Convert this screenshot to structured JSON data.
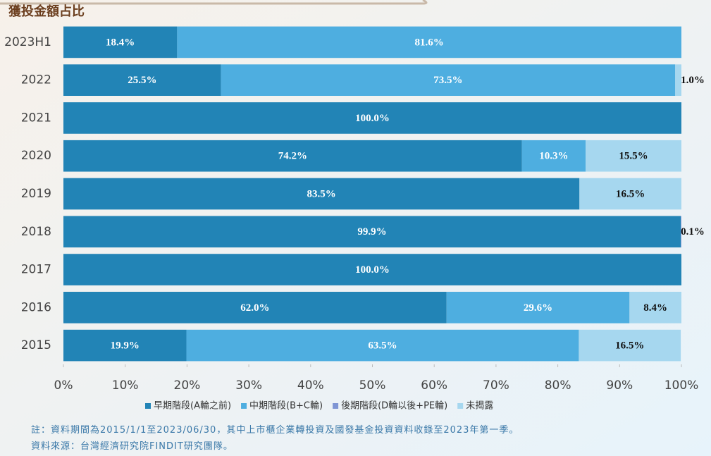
{
  "chart_data": {
    "type": "stacked_bar_h",
    "title": "獲投金額占比",
    "categories": [
      "2023H1",
      "2022",
      "2021",
      "2020",
      "2019",
      "2018",
      "2017",
      "2016",
      "2015"
    ],
    "series": [
      {
        "name": "早期階段(A輪之前)",
        "color": "#2284b6",
        "values": [
          18.4,
          25.5,
          100.0,
          74.2,
          83.5,
          99.9,
          100.0,
          62.0,
          19.9
        ],
        "value_labels": [
          "18.4%",
          "25.5%",
          "100.0%",
          "74.2%",
          "83.5%",
          "99.9%",
          "100.0%",
          "62.0%",
          "19.9%"
        ]
      },
      {
        "name": "中期階段(B+C輪)",
        "color": "#4eaee0",
        "values": [
          81.6,
          73.5,
          null,
          10.3,
          null,
          null,
          null,
          29.6,
          63.5
        ],
        "value_labels": [
          "81.6%",
          "73.5%",
          null,
          "10.3%",
          null,
          null,
          null,
          "29.6%",
          "63.5%"
        ]
      },
      {
        "name": "後期階段(D輪以後+PE輪)",
        "color": "#7f95d4",
        "values": [
          null,
          null,
          null,
          null,
          null,
          0.1,
          null,
          null,
          null
        ],
        "value_labels": [
          null,
          null,
          null,
          null,
          null,
          "0.1%",
          null,
          null,
          null
        ]
      },
      {
        "name": "未揭露",
        "color": "#a6d7ef",
        "values": [
          null,
          1.0,
          null,
          15.5,
          16.5,
          null,
          null,
          8.4,
          16.5
        ],
        "value_labels": [
          null,
          "1.0%",
          null,
          "15.5%",
          "16.5%",
          null,
          null,
          "8.4%",
          "16.5%"
        ]
      }
    ],
    "xlim": [
      0,
      100
    ],
    "xticks": [
      {
        "value": 0,
        "label": "0%"
      },
      {
        "value": 10,
        "label": "10%"
      },
      {
        "value": 20,
        "label": "20%"
      },
      {
        "value": 30,
        "label": "30%"
      },
      {
        "value": 40,
        "label": "40%"
      },
      {
        "value": 50,
        "label": "50%"
      },
      {
        "value": 60,
        "label": "60%"
      },
      {
        "value": 70,
        "label": "70%"
      },
      {
        "value": 80,
        "label": "80%"
      },
      {
        "value": 90,
        "label": "90%"
      },
      {
        "value": 100,
        "label": "100%"
      }
    ],
    "notes": [
      "註：資料期間為2015/1/1至2023/06/30，其中上市櫃企業轉投資及國發基金投資資料收錄至2023年第一季。",
      "資料來源：台灣經濟研究院FINDIT研究團隊。"
    ]
  }
}
